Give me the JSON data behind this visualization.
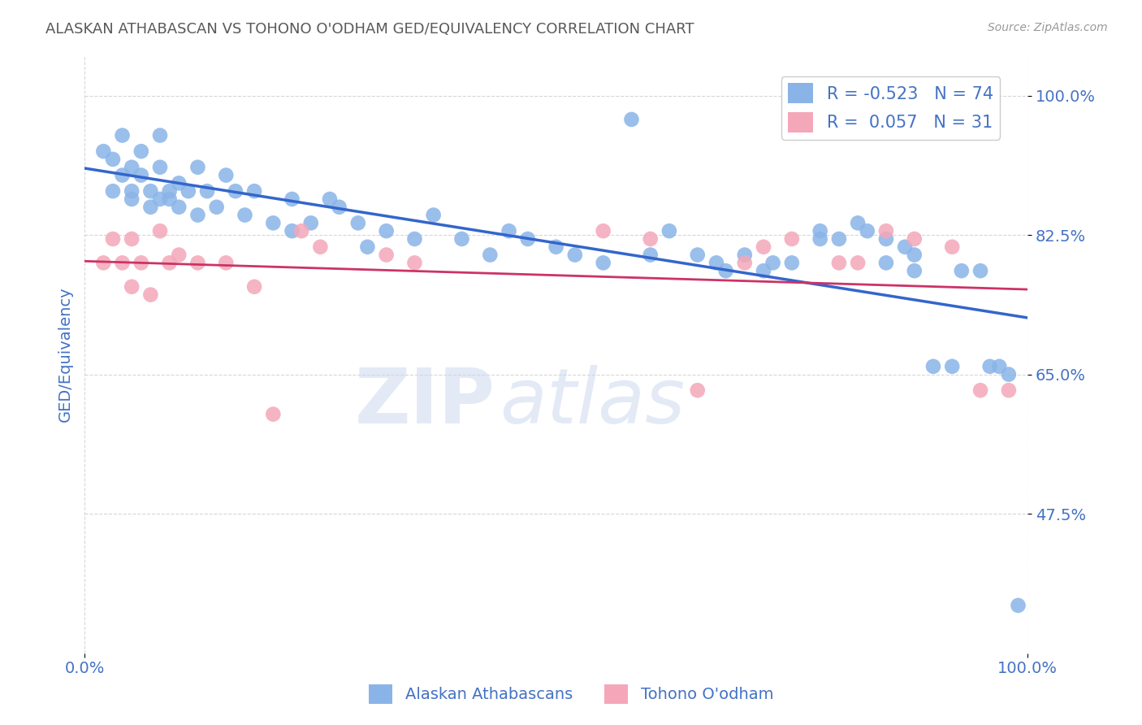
{
  "title": "ALASKAN ATHABASCAN VS TOHONO O'ODHAM GED/EQUIVALENCY CORRELATION CHART",
  "source": "Source: ZipAtlas.com",
  "xlabel": "",
  "ylabel": "GED/Equivalency",
  "xlim": [
    0.0,
    1.0
  ],
  "ylim": [
    0.3,
    1.05
  ],
  "yticks": [
    0.475,
    0.65,
    0.825,
    1.0
  ],
  "ytick_labels": [
    "47.5%",
    "65.0%",
    "82.5%",
    "100.0%"
  ],
  "blue_color": "#8ab4e8",
  "pink_color": "#f4a7b9",
  "blue_line_color": "#3366cc",
  "pink_line_color": "#cc3366",
  "blue_R": -0.523,
  "blue_N": 74,
  "pink_R": 0.057,
  "pink_N": 31,
  "legend_label_blue": "Alaskan Athabascans",
  "legend_label_pink": "Tohono O'odham",
  "watermark_zip": "ZIP",
  "watermark_atlas": "atlas",
  "blue_scatter_x": [
    0.02,
    0.03,
    0.03,
    0.04,
    0.04,
    0.05,
    0.05,
    0.05,
    0.06,
    0.06,
    0.07,
    0.07,
    0.08,
    0.08,
    0.08,
    0.09,
    0.09,
    0.1,
    0.1,
    0.11,
    0.12,
    0.12,
    0.13,
    0.14,
    0.15,
    0.16,
    0.17,
    0.18,
    0.2,
    0.22,
    0.22,
    0.24,
    0.26,
    0.27,
    0.29,
    0.3,
    0.32,
    0.35,
    0.37,
    0.4,
    0.43,
    0.45,
    0.47,
    0.5,
    0.52,
    0.55,
    0.58,
    0.6,
    0.62,
    0.65,
    0.67,
    0.68,
    0.7,
    0.72,
    0.73,
    0.75,
    0.78,
    0.78,
    0.8,
    0.82,
    0.83,
    0.85,
    0.85,
    0.87,
    0.88,
    0.88,
    0.9,
    0.92,
    0.93,
    0.95,
    0.96,
    0.97,
    0.98,
    0.99
  ],
  "blue_scatter_y": [
    0.93,
    0.88,
    0.92,
    0.9,
    0.95,
    0.88,
    0.91,
    0.87,
    0.9,
    0.93,
    0.88,
    0.86,
    0.91,
    0.87,
    0.95,
    0.87,
    0.88,
    0.86,
    0.89,
    0.88,
    0.91,
    0.85,
    0.88,
    0.86,
    0.9,
    0.88,
    0.85,
    0.88,
    0.84,
    0.87,
    0.83,
    0.84,
    0.87,
    0.86,
    0.84,
    0.81,
    0.83,
    0.82,
    0.85,
    0.82,
    0.8,
    0.83,
    0.82,
    0.81,
    0.8,
    0.79,
    0.97,
    0.8,
    0.83,
    0.8,
    0.79,
    0.78,
    0.8,
    0.78,
    0.79,
    0.79,
    0.83,
    0.82,
    0.82,
    0.84,
    0.83,
    0.79,
    0.82,
    0.81,
    0.78,
    0.8,
    0.66,
    0.66,
    0.78,
    0.78,
    0.66,
    0.66,
    0.65,
    0.36
  ],
  "pink_scatter_x": [
    0.02,
    0.03,
    0.04,
    0.05,
    0.05,
    0.06,
    0.07,
    0.08,
    0.09,
    0.1,
    0.12,
    0.15,
    0.18,
    0.2,
    0.23,
    0.25,
    0.32,
    0.35,
    0.55,
    0.6,
    0.65,
    0.7,
    0.72,
    0.75,
    0.8,
    0.82,
    0.85,
    0.88,
    0.92,
    0.95,
    0.98
  ],
  "pink_scatter_y": [
    0.79,
    0.82,
    0.79,
    0.76,
    0.82,
    0.79,
    0.75,
    0.83,
    0.79,
    0.8,
    0.79,
    0.79,
    0.76,
    0.6,
    0.83,
    0.81,
    0.8,
    0.79,
    0.83,
    0.82,
    0.63,
    0.79,
    0.81,
    0.82,
    0.79,
    0.79,
    0.83,
    0.82,
    0.81,
    0.63,
    0.63
  ],
  "axis_label_color": "#4472c4",
  "tick_label_color": "#4472c4",
  "title_color": "#595959",
  "grid_color": "#cccccc",
  "background_color": "#ffffff"
}
